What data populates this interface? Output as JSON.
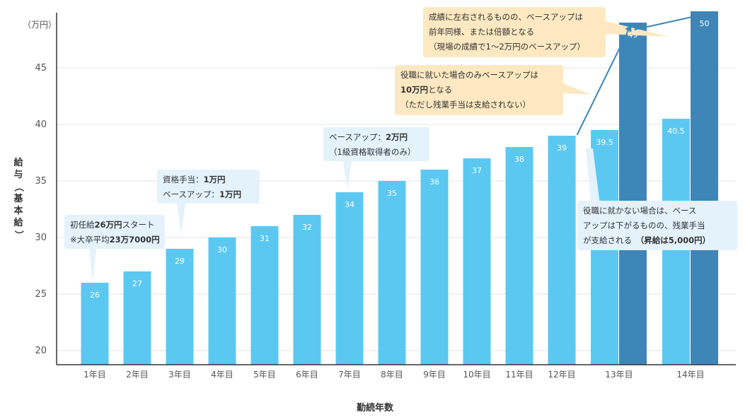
{
  "chart_data": {
    "type": "bar",
    "unit_label": "（万円）",
    "ylabel": "給与（基本給）",
    "xlabel": "勤続年数",
    "ylim": [
      19,
      48
    ],
    "yticks": [
      20,
      25,
      30,
      35,
      40,
      45
    ],
    "categories": [
      "1年目",
      "2年目",
      "3年目",
      "4年目",
      "5年目",
      "6年目",
      "7年目",
      "8年目",
      "9年目",
      "10年目",
      "11年目",
      "12年目",
      "13年目",
      "14年目"
    ],
    "series": [
      {
        "values": [
          26,
          27,
          29,
          30,
          31,
          32,
          34,
          35,
          36,
          37,
          38,
          39,
          39.5,
          40.5
        ],
        "color": "#5bc8f2"
      },
      {
        "values": [
          null,
          null,
          null,
          null,
          null,
          null,
          null,
          null,
          null,
          null,
          null,
          null,
          49,
          50
        ],
        "color": "#3e86b8"
      }
    ],
    "data_labels": {
      "main": [
        "26",
        "27",
        "29",
        "30",
        "31",
        "32",
        "34",
        "35",
        "36",
        "37",
        "38",
        "39",
        "39.5",
        "40.5"
      ],
      "promoted": [
        "49",
        "50"
      ]
    },
    "grid": true,
    "colors": {
      "bar_light": "#5bc8f2",
      "bar_dark": "#3e86b8",
      "arrow": "#3e86b8",
      "grid": "#e3e3e3",
      "axis": "#333333"
    },
    "annotations": {
      "a1": {
        "pre": "初任給",
        "b1": "26万円",
        "mid": "スタート",
        "pre2": "※大卒平均",
        "b2": "23万7000円"
      },
      "a2": {
        "l1": "資格手当：",
        "b1": "1万円",
        "l2": "ベースアップ：",
        "b2": "1万円"
      },
      "a3": {
        "l1": "ベースアップ：",
        "b1": "2万円",
        "l2": "（1級資格取得者のみ）"
      },
      "a4": {
        "l1": "役職に就いた場合のみベースアップは",
        "b1": "10万円",
        "l2": "となる",
        "l3": "（ただし残業手当は支給されない）"
      },
      "a5": {
        "l1": "成績に左右されるものの、ベースアップは",
        "l2": "前年同様、または倍額となる",
        "l3": "（現場の成績で1〜2万円のベースアップ）"
      },
      "a6": {
        "l1": "役職に就かない場合は、ベース",
        "l2": "アップは下がるものの、残業手当",
        "l3": "が支給される　",
        "b1": "（昇給は5,000円）"
      }
    }
  }
}
